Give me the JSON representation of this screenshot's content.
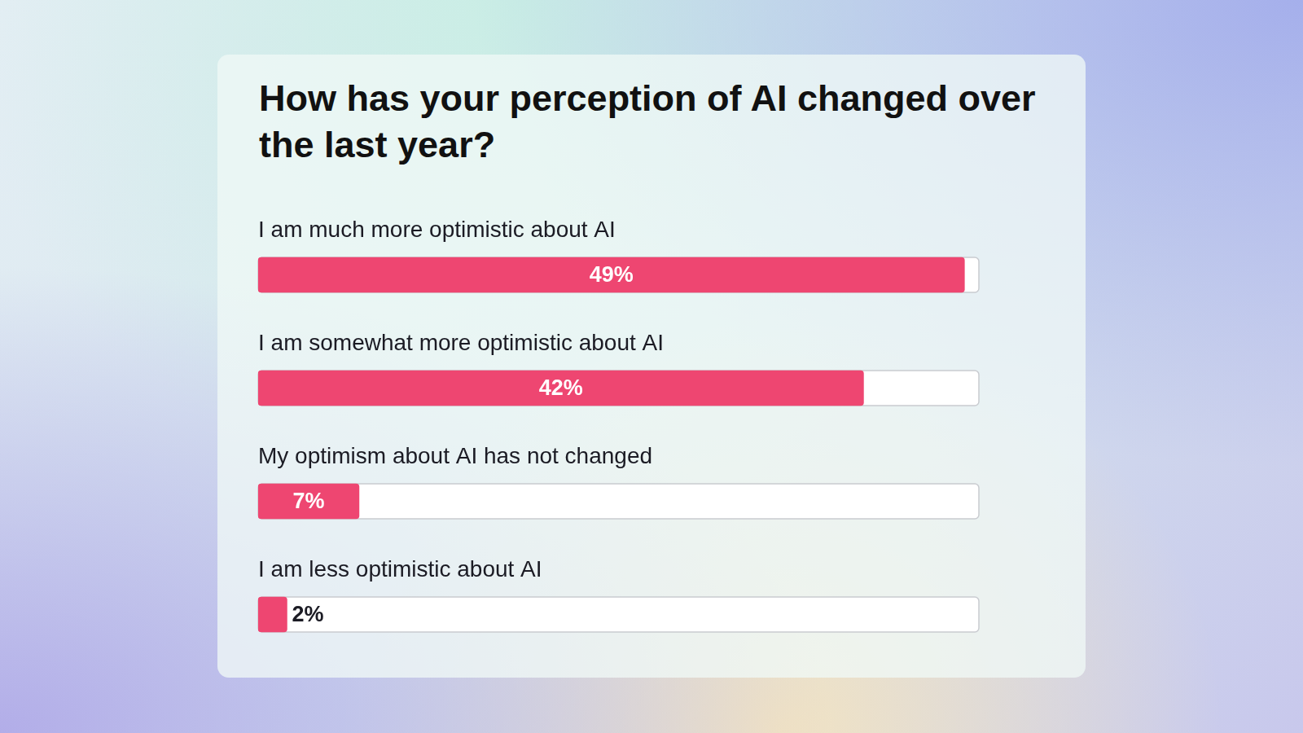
{
  "chart_data": {
    "type": "bar",
    "orientation": "horizontal",
    "title": "How has your perception of AI changed over the last year?",
    "categories": [
      "I am much more optimistic about AI",
      "I am somewhat more optimistic about AI",
      "My optimism about AI has not changed",
      "I am less optimistic about AI"
    ],
    "values": [
      49,
      42,
      7,
      2
    ],
    "value_labels": [
      "49%",
      "42%",
      "7%",
      "2%"
    ],
    "color": "#ee4671",
    "xlim": [
      0,
      50
    ],
    "data_labels": true,
    "tick_labels": false,
    "grid": false
  }
}
